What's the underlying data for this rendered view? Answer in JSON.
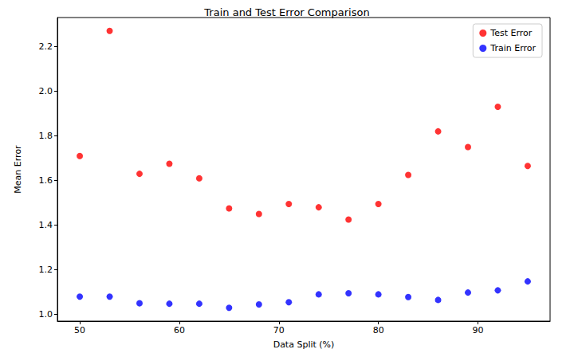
{
  "chart_data": {
    "type": "scatter",
    "title": "Train and Test Error Comparison",
    "x_label": "Data Split (%)",
    "y_label": "Mean Error",
    "x": [
      50,
      53,
      56,
      59,
      62,
      65,
      68,
      71,
      74,
      77,
      80,
      83,
      86,
      89,
      92,
      95
    ],
    "series": [
      {
        "name": "Test Error",
        "color": "#ff0000",
        "marker": "circle",
        "values": [
          1.71,
          2.27,
          1.63,
          1.675,
          1.61,
          1.475,
          1.45,
          1.495,
          1.48,
          1.425,
          1.495,
          1.625,
          1.82,
          1.75,
          1.93,
          1.665
        ]
      },
      {
        "name": "Train Error",
        "color": "#0000ff",
        "marker": "circle",
        "values": [
          1.08,
          1.08,
          1.05,
          1.048,
          1.048,
          1.03,
          1.045,
          1.055,
          1.09,
          1.095,
          1.09,
          1.078,
          1.065,
          1.098,
          1.108,
          1.148
        ]
      }
    ],
    "xlim": [
      47.75,
      97.25
    ],
    "xticks": [
      50,
      60,
      70,
      80,
      90
    ],
    "ylim": [
      0.97,
      2.33
    ],
    "yticks": [
      {
        "value": 1,
        "label": "1.0"
      },
      1.2,
      1.4,
      1.6,
      1.8,
      {
        "value": 2,
        "label": "2.0"
      },
      2.2
    ],
    "grid": false,
    "legend": "upper right"
  }
}
